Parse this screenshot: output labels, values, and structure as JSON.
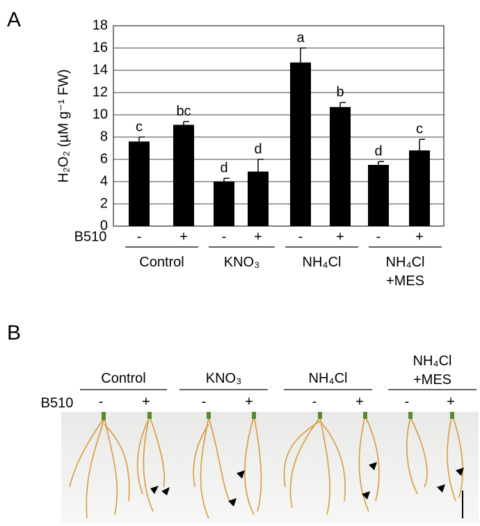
{
  "chart_data": {
    "type": "bar",
    "panel_label": "A",
    "y_label": "H₂O₂ (µM g⁻¹ FW)",
    "treatment_label": "B510",
    "categories": [
      "-",
      "+",
      "-",
      "+",
      "-",
      "+",
      "-",
      "+"
    ],
    "groups": [
      "Control",
      "KNO₃",
      "NH₄Cl",
      "NH₄Cl +MES"
    ],
    "values": [
      7.6,
      9.1,
      4.0,
      4.9,
      14.7,
      10.7,
      5.5,
      6.8
    ],
    "errors": [
      0.4,
      0.3,
      0.3,
      1.1,
      1.3,
      0.4,
      0.3,
      1.0
    ],
    "annotations": [
      "c",
      "bc",
      "d",
      "d",
      "a",
      "b",
      "d",
      "c"
    ],
    "color": "#000000",
    "ylim": [
      0,
      18
    ],
    "yticks": [
      0,
      2,
      4,
      6,
      8,
      10,
      12,
      14,
      16,
      18
    ],
    "grid": true
  },
  "panel_b": {
    "label": "B",
    "treatment_label": "B510",
    "groups": [
      "Control",
      "KNO₃",
      "NH₄Cl",
      "NH₄Cl +MES"
    ],
    "signs": [
      "-",
      "+",
      "-",
      "+",
      "-",
      "+",
      "-",
      "+"
    ]
  }
}
